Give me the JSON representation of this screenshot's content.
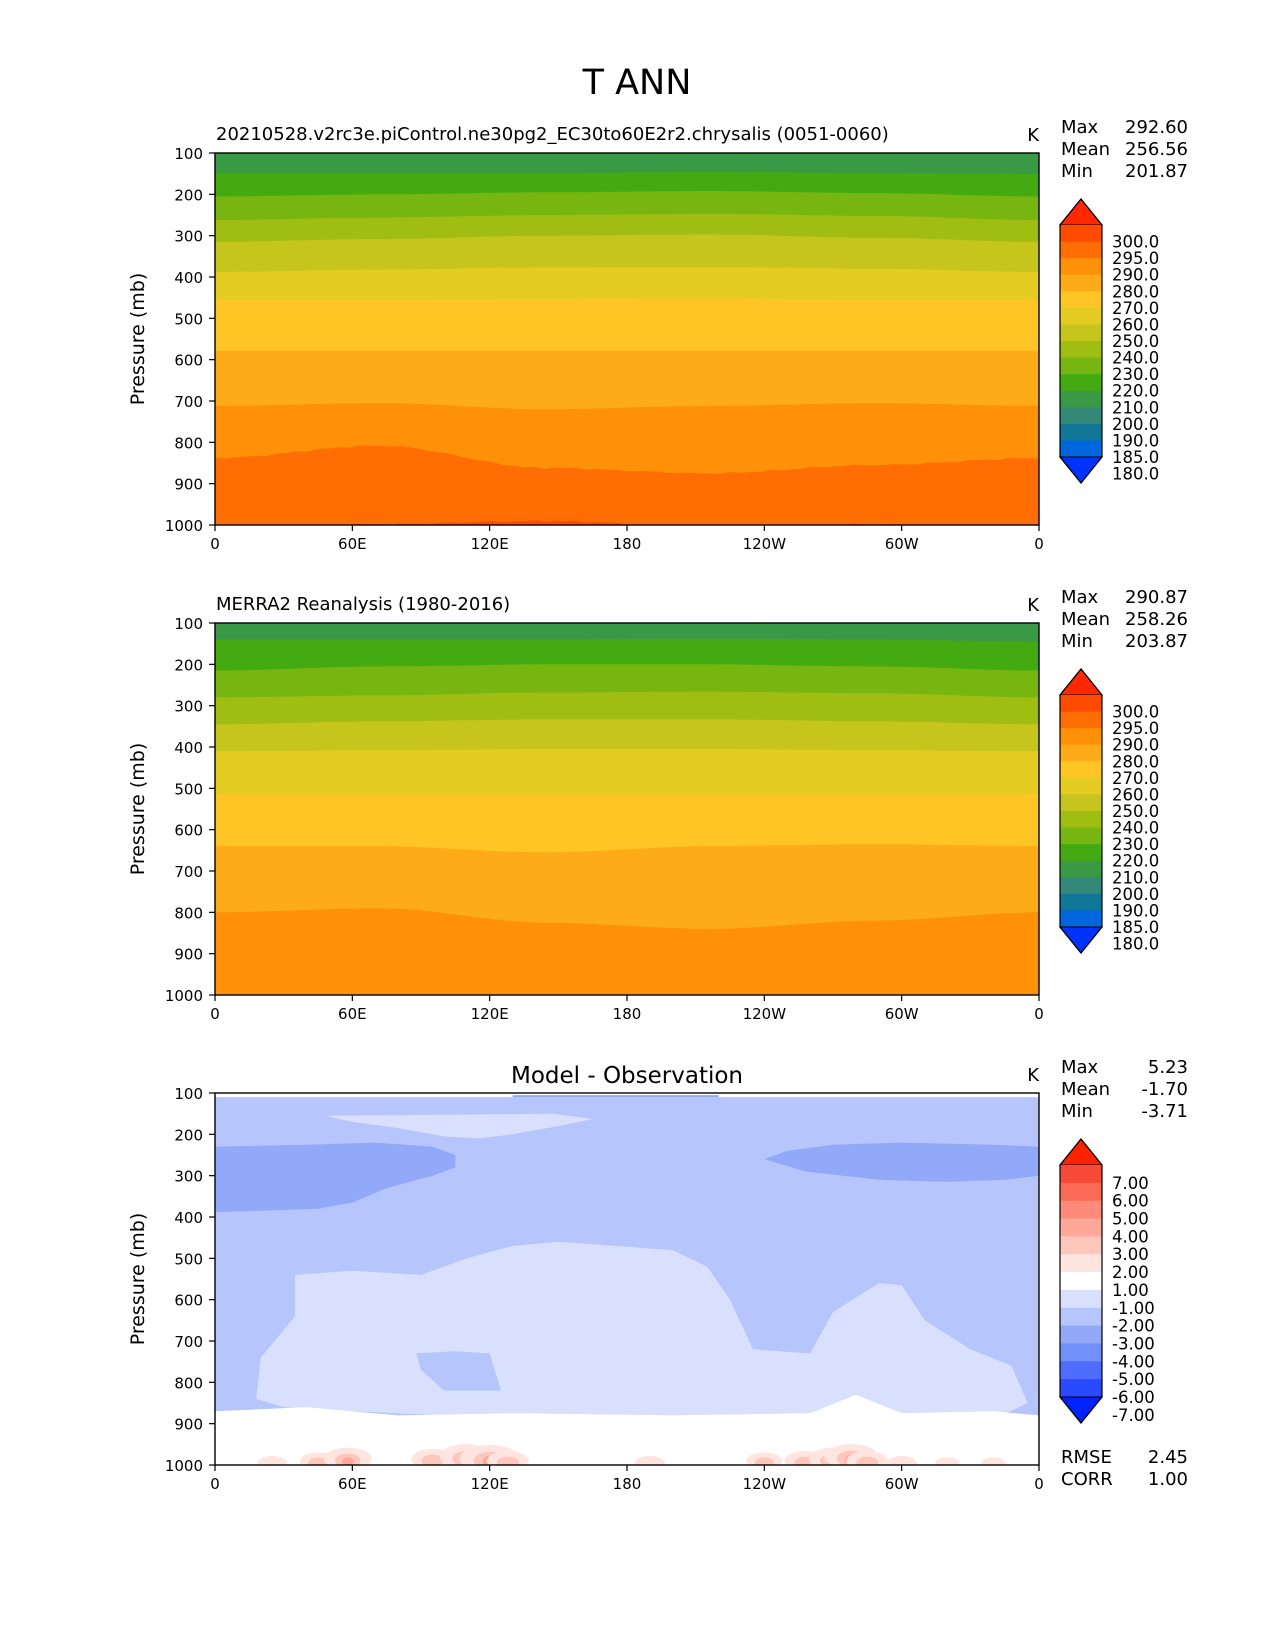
{
  "figure_title": "T ANN",
  "chart_data": [
    {
      "type": "heatmap",
      "title": "20210528.v2rc3e.piControl.ne30pg2_EC30to60E2r2.chrysalis (0051-0060)",
      "units": "K",
      "ylabel": "Pressure (mb)",
      "ylim": [
        1000,
        100
      ],
      "xlim": [
        0,
        360
      ],
      "x_ticks": [
        "0",
        "60E",
        "120E",
        "180",
        "120W",
        "60W",
        "0"
      ],
      "y_ticks": [
        "100",
        "200",
        "300",
        "400",
        "500",
        "600",
        "700",
        "800",
        "900",
        "1000"
      ],
      "stats": [
        {
          "label": "Max",
          "value": "292.60"
        },
        {
          "label": "Mean",
          "value": "256.56"
        },
        {
          "label": "Min",
          "value": "201.87"
        }
      ],
      "contour_levels": [
        180,
        185,
        190,
        200,
        210,
        220,
        230,
        240,
        250,
        260,
        270,
        280,
        290,
        295,
        300
      ],
      "colorbar_labels": [
        "300.0",
        "295.0",
        "290.0",
        "280.0",
        "270.0",
        "260.0",
        "250.0",
        "240.0",
        "230.0",
        "220.0",
        "210.0",
        "200.0",
        "190.0",
        "185.0",
        "180.0"
      ],
      "band_boundaries_mb": [
        {
          "level": 210,
          "mb": [
            148,
            148,
            148,
            146,
            148,
            150
          ]
        },
        {
          "level": 220,
          "mb": [
            205,
            200,
            195,
            192,
            197,
            205
          ]
        },
        {
          "level": 230,
          "mb": [
            262,
            256,
            250,
            247,
            252,
            262
          ]
        },
        {
          "level": 240,
          "mb": [
            315,
            308,
            300,
            297,
            305,
            315
          ]
        },
        {
          "level": 250,
          "mb": [
            388,
            382,
            377,
            376,
            380,
            388
          ]
        },
        {
          "level": 260,
          "mb": [
            455,
            455,
            453,
            452,
            455,
            455
          ]
        },
        {
          "level": 270,
          "mb": [
            578,
            578,
            578,
            578,
            578,
            578
          ]
        },
        {
          "level": 280,
          "mb": [
            712,
            705,
            720,
            712,
            705,
            712
          ]
        },
        {
          "level": 290,
          "mb": [
            838,
            808,
            862,
            875,
            855,
            838
          ]
        },
        {
          "level": 295,
          "mb": [
            1012,
            998,
            990,
            1005,
            998,
            1012
          ]
        }
      ]
    },
    {
      "type": "heatmap",
      "title": "MERRA2 Reanalysis (1980-2016)",
      "units": "K",
      "ylabel": "Pressure (mb)",
      "ylim": [
        1000,
        100
      ],
      "xlim": [
        0,
        360
      ],
      "x_ticks": [
        "0",
        "60E",
        "120E",
        "180",
        "120W",
        "60W",
        "0"
      ],
      "y_ticks": [
        "100",
        "200",
        "300",
        "400",
        "500",
        "600",
        "700",
        "800",
        "900",
        "1000"
      ],
      "stats": [
        {
          "label": "Max",
          "value": "290.87"
        },
        {
          "label": "Mean",
          "value": "258.26"
        },
        {
          "label": "Min",
          "value": "203.87"
        }
      ],
      "contour_levels": [
        180,
        185,
        190,
        200,
        210,
        220,
        230,
        240,
        250,
        260,
        270,
        280,
        290,
        295,
        300
      ],
      "colorbar_labels": [
        "300.0",
        "295.0",
        "290.0",
        "280.0",
        "270.0",
        "260.0",
        "250.0",
        "240.0",
        "230.0",
        "220.0",
        "210.0",
        "200.0",
        "190.0",
        "185.0",
        "180.0"
      ],
      "band_boundaries_mb": [
        {
          "level": 210,
          "mb": [
            140,
            140,
            140,
            138,
            140,
            145
          ]
        },
        {
          "level": 220,
          "mb": [
            215,
            205,
            200,
            200,
            205,
            215
          ]
        },
        {
          "level": 230,
          "mb": [
            280,
            275,
            268,
            266,
            270,
            280
          ]
        },
        {
          "level": 240,
          "mb": [
            345,
            338,
            333,
            333,
            338,
            345
          ]
        },
        {
          "level": 250,
          "mb": [
            410,
            408,
            405,
            405,
            408,
            410
          ]
        },
        {
          "level": 260,
          "mb": [
            515,
            515,
            515,
            515,
            515,
            515
          ]
        },
        {
          "level": 270,
          "mb": [
            640,
            640,
            655,
            640,
            635,
            640
          ]
        },
        {
          "level": 280,
          "mb": [
            800,
            790,
            825,
            840,
            820,
            800
          ]
        },
        {
          "level": 290,
          "mb": [
            1010,
            1010,
            1010,
            1010,
            1010,
            1010
          ]
        }
      ]
    },
    {
      "type": "heatmap",
      "title": "Model - Observation",
      "units": "K",
      "ylabel": "Pressure (mb)",
      "ylim": [
        1000,
        100
      ],
      "xlim": [
        0,
        360
      ],
      "x_ticks": [
        "0",
        "60E",
        "120E",
        "180",
        "120W",
        "60W",
        "0"
      ],
      "y_ticks": [
        "100",
        "200",
        "300",
        "400",
        "500",
        "600",
        "700",
        "800",
        "900",
        "1000"
      ],
      "stats": [
        {
          "label": "Max",
          "value": "5.23"
        },
        {
          "label": "Mean",
          "value": "-1.70"
        },
        {
          "label": "Min",
          "value": "-3.71"
        }
      ],
      "extra_stats": [
        {
          "label": "RMSE",
          "value": "2.45"
        },
        {
          "label": "CORR",
          "value": "1.00"
        }
      ],
      "contour_levels": [
        -7,
        -6,
        -5,
        -4,
        -3,
        -2,
        -1,
        1,
        2,
        3,
        4,
        5,
        6,
        7
      ],
      "colorbar_labels": [
        "7.00",
        "6.00",
        "5.00",
        "4.00",
        "3.00",
        "2.00",
        "1.00",
        "-1.00",
        "-2.00",
        "-3.00",
        "-4.00",
        "-5.00",
        "-6.00",
        "-7.00"
      ]
    }
  ],
  "colors": {
    "abs_scale": [
      "#0033ff",
      "#0066dd",
      "#117799",
      "#338877",
      "#3a9944",
      "#44aa11",
      "#77b511",
      "#a0bd11",
      "#c5c51e",
      "#e5cc22",
      "#fec524",
      "#fdab18",
      "#fe9108",
      "#ff6d03",
      "#ff4a01",
      "#ff2800"
    ],
    "diff_scale": [
      "#0022ff",
      "#2a4aff",
      "#4e6cfe",
      "#7190fa",
      "#92a8f8",
      "#b6c5fb",
      "#d8e0fd",
      "#ffffff",
      "#ffe5e0",
      "#ffc6bc",
      "#ffa89a",
      "#fe8a7a",
      "#fb6a56",
      "#f74a36",
      "#ff2200"
    ]
  }
}
